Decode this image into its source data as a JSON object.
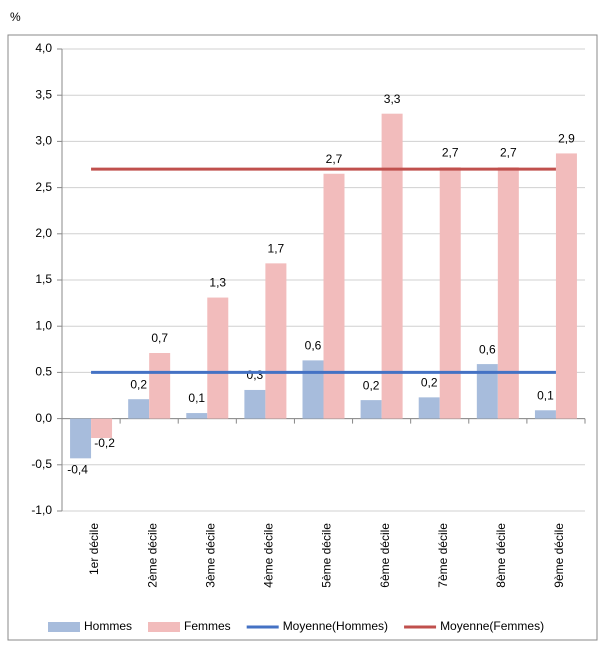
{
  "chart_data": {
    "type": "bar",
    "y_label": "%",
    "categories": [
      "1er décile",
      "2ème décile",
      "3ème décile",
      "4ème décile",
      "5ème décile",
      "6ème décile",
      "7ème décile",
      "8ème décile",
      "9ème décile"
    ],
    "series": [
      {
        "name": "Hommes",
        "color": "#a7bcdc",
        "values": [
          -0.43,
          0.21,
          0.06,
          0.31,
          0.63,
          0.2,
          0.23,
          0.59,
          0.09
        ],
        "value_labels": [
          "-0,4",
          "0,2",
          "0,1",
          "0,3",
          "0,6",
          "0,2",
          "0,2",
          "0,6",
          "0,1"
        ]
      },
      {
        "name": "Femmes",
        "color": "#f2bcbc",
        "values": [
          -0.21,
          0.71,
          1.31,
          1.68,
          2.65,
          3.3,
          2.72,
          2.72,
          2.87
        ],
        "value_labels": [
          "-0,2",
          "0,7",
          "1,3",
          "1,7",
          "2,7",
          "3,3",
          "2,7",
          "2,7",
          "2,9"
        ]
      },
      {
        "name": "Moyenne(Hommes)",
        "type": "line",
        "color": "#4472c4",
        "values": [
          0.5,
          0.5,
          0.5,
          0.5,
          0.5,
          0.5,
          0.5,
          0.5,
          0.5
        ]
      },
      {
        "name": "Moyenne(Femmes)",
        "type": "line",
        "color": "#c0504d",
        "values": [
          2.7,
          2.7,
          2.7,
          2.7,
          2.7,
          2.7,
          2.7,
          2.7,
          2.7
        ]
      }
    ],
    "negative_label_color": "#e8493f",
    "ylim": [
      -1,
      4
    ],
    "yticks": [
      {
        "value": -1,
        "label": "-1,0"
      },
      {
        "value": -0.5,
        "label": "-0,5"
      },
      {
        "value": 0,
        "label": "0,0"
      },
      0.5,
      {
        "value": 1,
        "label": "1,0"
      },
      {
        "value": 1.5,
        "label": "1,5"
      },
      {
        "value": 2,
        "label": "2,0"
      },
      {
        "value": 2.5,
        "label": "2,5"
      },
      {
        "value": 3,
        "label": "3,0"
      },
      {
        "value": 3.5,
        "label": "3,5"
      },
      {
        "value": 4,
        "label": "4,0"
      }
    ],
    "grid": true
  }
}
